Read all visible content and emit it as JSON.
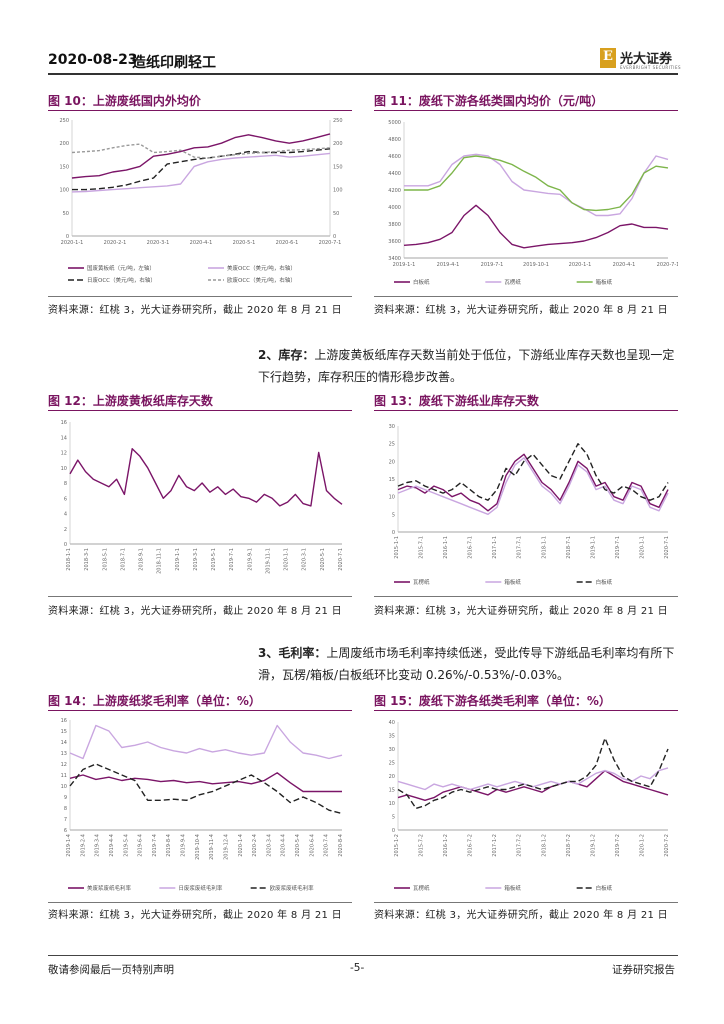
{
  "header": {
    "date": "2020-08-23",
    "sector": "造纸印刷轻工",
    "logo_cn": "光大证券",
    "logo_mark": "E",
    "logo_en": "EVERBRIGHT SECURITIES"
  },
  "figures": [
    {
      "title": "图 10：上游废纸国内外均价",
      "source": "资料来源：红桃 3，光大证券研究所，截止 2020 年 8 月 21 日"
    },
    {
      "title": "图 11：废纸下游各纸类国内均价（元/吨）",
      "source": "资料来源：红桃 3，光大证券研究所，截止 2020 年 8 月 21 日"
    },
    {
      "title": "图 12：上游废黄板纸库存天数",
      "source": "资料来源：红桃 3，光大证券研究所，截止 2020 年 8 月 21 日"
    },
    {
      "title": "图 13：废纸下游纸业库存天数",
      "source": "资料来源：红桃 3，光大证券研究所，截止 2020 年 8 月 21 日"
    },
    {
      "title": "图 14：上游废纸浆毛利率（单位：%）",
      "source": "资料来源：红桃 3，光大证券研究所，截止 2020 年 8 月 21 日"
    },
    {
      "title": "图 15：废纸下游各纸类毛利率（单位：%）",
      "source": "资料来源：红桃 3，光大证券研究所，截止 2020 年 8 月 21 日"
    }
  ],
  "paragraphs": {
    "inventory_label": "2、库存：",
    "inventory_text": "上游废黄板纸库存天数当前处于低位，下游纸业库存天数也呈现一定下行趋势，库存积压的情形稳步改善。",
    "margin_label": "3、毛利率：",
    "margin_text": "上周废纸市场毛利率持续低迷，受此传导下游纸品毛利率均有所下滑，瓦楞/箱板/白板纸环比变动 0.26%/-0.53%/-0.03%。"
  },
  "footer": {
    "left": "敬请参阅最后一页特别声明",
    "page": "-5-",
    "right": "证券研究报告"
  },
  "chart_data": [
    {
      "id": "fig10",
      "type": "line",
      "title": "上游废纸国内外均价",
      "x_ticks": [
        "2020-1-1",
        "2020-2-1",
        "2020-3-1",
        "2020-4-1",
        "2020-5-1",
        "2020-6-1",
        "2020-7-1"
      ],
      "y_left_ticks": [
        "0",
        "50",
        "100",
        "150",
        "200",
        "250"
      ],
      "y_right_ticks": [
        "0",
        "50",
        "100",
        "150",
        "200",
        "250"
      ],
      "ylim": [
        0,
        250
      ],
      "series": [
        {
          "name": "国废黄板纸（元/吨，左轴）",
          "color": "#7b1568",
          "dash": "",
          "values": [
            125,
            128,
            130,
            138,
            142,
            150,
            172,
            176,
            182,
            190,
            192,
            200,
            212,
            218,
            212,
            205,
            200,
            205,
            212,
            220
          ]
        },
        {
          "name": "美废OCC（美元/吨，右轴）",
          "color": "#c9a6e0",
          "dash": "",
          "values": [
            95,
            96,
            98,
            100,
            102,
            104,
            106,
            108,
            112,
            150,
            160,
            165,
            168,
            170,
            172,
            174,
            170,
            172,
            175,
            178
          ]
        },
        {
          "name": "日废OCC（美元/吨，右轴）",
          "color": "#222222",
          "dash": "6,3",
          "values": [
            100,
            100,
            102,
            105,
            110,
            118,
            125,
            155,
            160,
            165,
            168,
            172,
            176,
            182,
            180,
            180,
            180,
            182,
            185,
            188
          ]
        },
        {
          "name": "欧废OCC（美元/吨，右轴）",
          "color": "#999999",
          "dash": "3,2",
          "values": [
            180,
            182,
            184,
            190,
            195,
            198,
            180,
            182,
            185,
            170,
            168,
            172,
            175,
            178,
            180,
            182,
            185,
            186,
            188,
            190
          ]
        }
      ]
    },
    {
      "id": "fig11",
      "type": "line",
      "title": "废纸下游各纸类国内均价（元/吨）",
      "x_ticks": [
        "2019-1-1",
        "2019-4-1",
        "2019-7-1",
        "2019-10-1",
        "2020-1-1",
        "2020-4-1",
        "2020-7-1"
      ],
      "y_ticks": [
        "3400",
        "3600",
        "3800",
        "4000",
        "4200",
        "4400",
        "4600",
        "4800",
        "5000"
      ],
      "ylim": [
        3400,
        5000
      ],
      "series": [
        {
          "name": "白板纸",
          "color": "#7b1568",
          "dash": "",
          "values": [
            3550,
            3560,
            3580,
            3620,
            3700,
            3900,
            4020,
            3900,
            3700,
            3560,
            3520,
            3540,
            3560,
            3570,
            3580,
            3600,
            3640,
            3700,
            3780,
            3800,
            3760,
            3760,
            3740
          ]
        },
        {
          "name": "瓦楞纸",
          "color": "#c9a6e0",
          "dash": "",
          "values": [
            4250,
            4250,
            4250,
            4300,
            4500,
            4600,
            4620,
            4600,
            4500,
            4300,
            4200,
            4180,
            4160,
            4150,
            4050,
            3980,
            3900,
            3900,
            3920,
            4100,
            4400,
            4600,
            4560
          ]
        },
        {
          "name": "箱板纸",
          "color": "#7db54a",
          "dash": "",
          "values": [
            4200,
            4200,
            4200,
            4250,
            4400,
            4580,
            4600,
            4580,
            4550,
            4500,
            4420,
            4350,
            4250,
            4200,
            4050,
            3970,
            3960,
            3970,
            4000,
            4150,
            4400,
            4480,
            4460
          ]
        }
      ]
    },
    {
      "id": "fig12",
      "type": "line",
      "title": "上游废黄板纸库存天数",
      "x_ticks": [
        "2018-1-1",
        "2018-3-1",
        "2018-5-1",
        "2018-7-1",
        "2018-9-1",
        "2018-11-1",
        "2019-1-1",
        "2019-3-1",
        "2019-5-1",
        "2019-7-1",
        "2019-9-1",
        "2019-11-1",
        "2020-1-1",
        "2020-3-1",
        "2020-5-1",
        "2020-7-1"
      ],
      "y_ticks": [
        "0",
        "2",
        "4",
        "6",
        "8",
        "10",
        "12",
        "14",
        "16"
      ],
      "ylim": [
        0,
        16
      ],
      "series": [
        {
          "name": "废黄板纸库存天数",
          "color": "#7b1568",
          "dash": "",
          "values": [
            9.2,
            11,
            9.5,
            8.5,
            8,
            7.5,
            8.5,
            6.5,
            12.5,
            11.5,
            10,
            8,
            6,
            7,
            9,
            7.5,
            7,
            8,
            6.8,
            7.5,
            6.5,
            7.2,
            6.2,
            6,
            5.5,
            6.5,
            6,
            5,
            5.5,
            6.5,
            5.3,
            5,
            12,
            7,
            6,
            5.2
          ]
        }
      ]
    },
    {
      "id": "fig13",
      "type": "line",
      "title": "废纸下游纸业库存天数",
      "x_ticks": [
        "2015-1-1",
        "2015-7-1",
        "2016-1-1",
        "2016-7-1",
        "2017-1-1",
        "2017-7-1",
        "2018-1-1",
        "2018-7-1",
        "2019-1-1",
        "2019-7-1",
        "2020-1-1",
        "2020-7-1"
      ],
      "y_ticks": [
        "0",
        "5",
        "10",
        "15",
        "20",
        "25",
        "30"
      ],
      "ylim": [
        0,
        30
      ],
      "series": [
        {
          "name": "瓦楞纸",
          "color": "#7b1568",
          "dash": "",
          "values": [
            12,
            13,
            12.5,
            11,
            13,
            12,
            10,
            11,
            9,
            8,
            6,
            8,
            16,
            20,
            22,
            18,
            14,
            12,
            9,
            14,
            20,
            18,
            13,
            14,
            10,
            9,
            14,
            13,
            8,
            7,
            12
          ]
        },
        {
          "name": "箱板纸",
          "color": "#c9a6e0",
          "dash": "",
          "values": [
            11,
            12,
            13,
            12,
            11,
            10,
            9,
            8,
            7,
            6,
            5,
            7,
            14,
            19,
            21,
            17,
            13,
            11,
            8,
            13,
            19,
            17,
            12,
            13,
            9,
            8,
            13,
            12,
            7,
            6,
            11
          ]
        },
        {
          "name": "白板纸",
          "color": "#222222",
          "dash": "6,3",
          "values": [
            13,
            14,
            14.5,
            13,
            12,
            11,
            12,
            14,
            12,
            10,
            9,
            12,
            18,
            16,
            20,
            22,
            19,
            16,
            15,
            20,
            25,
            22,
            16,
            12,
            11,
            13,
            12,
            10,
            9,
            10,
            14
          ]
        }
      ]
    },
    {
      "id": "fig14",
      "type": "line",
      "title": "上游废纸浆毛利率（单位：%）",
      "x_ticks": [
        "2019-1-4",
        "2019-2-4",
        "2019-3-4",
        "2019-4-4",
        "2019-5-4",
        "2019-6-4",
        "2019-7-4",
        "2019-8-4",
        "2019-9-4",
        "2019-10-4",
        "2019-11-4",
        "2019-12-4",
        "2020-1-4",
        "2020-2-4",
        "2020-3-4",
        "2020-4-4",
        "2020-5-4",
        "2020-6-4",
        "2020-7-4",
        "2020-8-4"
      ],
      "y_ticks": [
        "6",
        "7",
        "8",
        "9",
        "10",
        "11",
        "12",
        "13",
        "14",
        "15",
        "16"
      ],
      "ylim": [
        6,
        16
      ],
      "series": [
        {
          "name": "美废浆废纸毛利率",
          "color": "#7b1568",
          "dash": "",
          "values": [
            10.7,
            11,
            10.6,
            10.8,
            10.5,
            10.7,
            10.6,
            10.4,
            10.5,
            10.3,
            10.4,
            10.2,
            10.3,
            10.4,
            10.2,
            10.5,
            11.2,
            10.3,
            9.5,
            9.5,
            9.5,
            9.5
          ]
        },
        {
          "name": "日废浆废纸毛利率",
          "color": "#c9a6e0",
          "dash": "",
          "values": [
            13,
            12.5,
            15.5,
            15,
            13.5,
            13.7,
            14,
            13.5,
            13.2,
            13,
            13.4,
            13.1,
            13.3,
            13,
            12.8,
            13,
            15.5,
            14,
            13,
            12.8,
            12.5,
            12.8
          ]
        },
        {
          "name": "欧废浆废纸毛利率",
          "color": "#222222",
          "dash": "6,3",
          "values": [
            10,
            11.5,
            12,
            11.5,
            11,
            10.5,
            8.7,
            8.7,
            8.8,
            8.7,
            9.2,
            9.5,
            10,
            10.5,
            11,
            10.3,
            9.5,
            8.5,
            9,
            8.5,
            7.8,
            7.5
          ]
        }
      ]
    },
    {
      "id": "fig15",
      "type": "line",
      "title": "废纸下游各纸类毛利率（单位：%）",
      "x_ticks": [
        "2015-1-2",
        "2015-7-2",
        "2016-1-2",
        "2016-7-2",
        "2017-1-2",
        "2017-7-2",
        "2018-1-2",
        "2018-7-2",
        "2019-1-2",
        "2019-7-2",
        "2020-1-2",
        "2020-7-2"
      ],
      "y_ticks": [
        "0",
        "5",
        "10",
        "15",
        "20",
        "25",
        "30",
        "35",
        "40"
      ],
      "ylim": [
        0,
        40
      ],
      "series": [
        {
          "name": "瓦楞纸",
          "color": "#7b1568",
          "dash": "",
          "values": [
            12,
            13,
            12,
            11,
            12,
            14,
            15,
            16,
            15,
            14,
            13,
            15,
            14,
            15,
            16,
            15,
            14,
            16,
            17,
            18,
            17,
            16,
            19,
            22,
            20,
            18,
            17,
            16,
            15,
            14,
            13
          ]
        },
        {
          "name": "箱板纸",
          "color": "#c9a6e0",
          "dash": "",
          "values": [
            18,
            17,
            16,
            15,
            17,
            16,
            17,
            16,
            15,
            16,
            17,
            16,
            17,
            18,
            17,
            16,
            17,
            18,
            17,
            18,
            17,
            19,
            21,
            22,
            21,
            19,
            18,
            20,
            19,
            22,
            23
          ]
        },
        {
          "name": "白板纸",
          "color": "#222222",
          "dash": "6,3",
          "values": [
            15,
            13,
            8,
            9,
            11,
            12,
            14,
            15,
            14,
            15,
            16,
            15,
            15,
            16,
            17,
            16,
            15,
            16,
            17,
            18,
            18,
            20,
            24,
            34,
            26,
            20,
            18,
            17,
            16,
            22,
            30
          ]
        }
      ]
    }
  ]
}
